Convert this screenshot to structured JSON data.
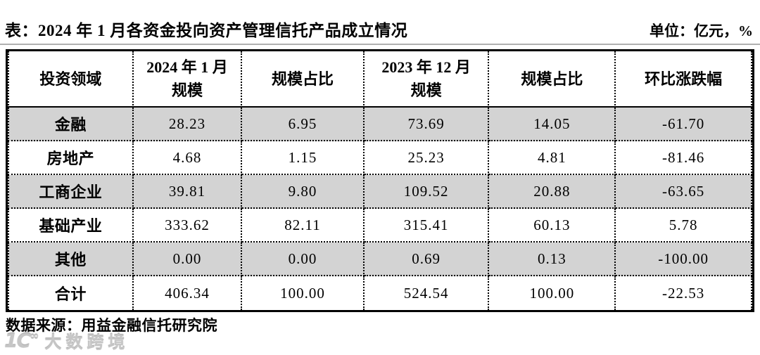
{
  "title": "表：2024 年 1 月各资金投向资产管理信托产品成立情况",
  "unit_label": "单位：亿元，%",
  "chart_data": {
    "type": "table",
    "title": "2024 年 1 月各资金投向资产管理信托产品成立情况",
    "unit": "亿元，%",
    "columns": [
      [
        "投资领域"
      ],
      [
        "2024 年 1 月",
        "规模"
      ],
      [
        "规模占比"
      ],
      [
        "2023 年 12 月",
        "规模"
      ],
      [
        "规模占比"
      ],
      [
        "环比涨跌幅"
      ]
    ],
    "rows": [
      {
        "label": "金融",
        "values": [
          "28.23",
          "6.95",
          "73.69",
          "14.05",
          "-61.70"
        ]
      },
      {
        "label": "房地产",
        "values": [
          "4.68",
          "1.15",
          "25.23",
          "4.81",
          "-81.46"
        ]
      },
      {
        "label": "工商企业",
        "values": [
          "39.81",
          "9.80",
          "109.52",
          "20.88",
          "-63.65"
        ]
      },
      {
        "label": "基础产业",
        "values": [
          "333.62",
          "82.11",
          "315.41",
          "60.13",
          "5.78"
        ]
      },
      {
        "label": "其他",
        "values": [
          "0.00",
          "0.00",
          "0.69",
          "0.13",
          "-100.00"
        ]
      },
      {
        "label": "合计",
        "values": [
          "406.34",
          "100.00",
          "524.54",
          "100.00",
          "-22.53"
        ]
      }
    ]
  },
  "source": "数据来源：用益金融信托研究院",
  "watermark": {
    "logo": "1C",
    "logo_sup": "∞",
    "text": "大数跨境"
  },
  "colors": {
    "text": "#000000",
    "background": "#ffffff",
    "row_stripe": "#d3d3d3",
    "title_rule": "#b0b0b0",
    "watermark": "#c6c6c6"
  }
}
